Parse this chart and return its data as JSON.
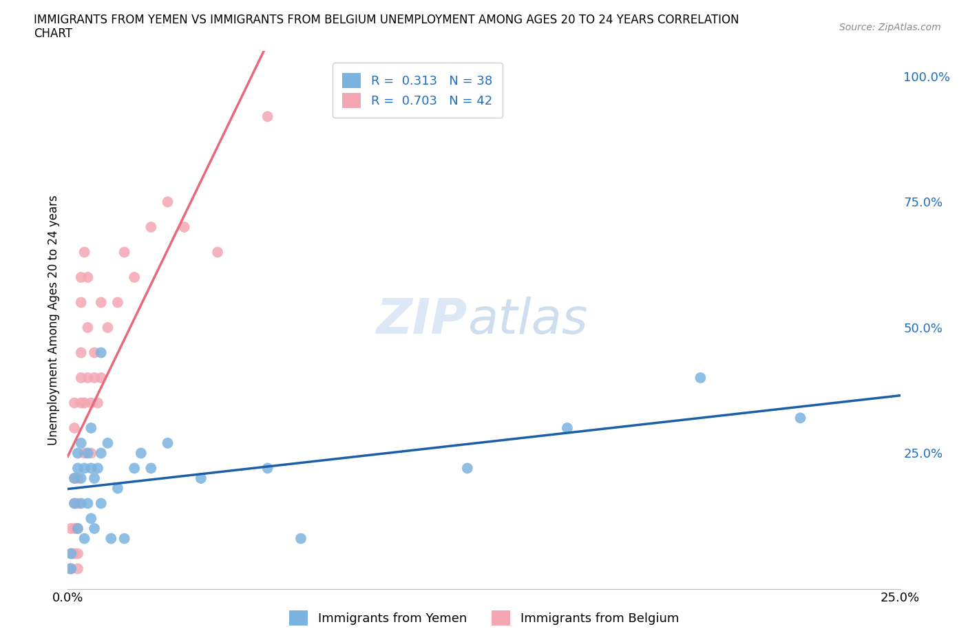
{
  "title_line1": "IMMIGRANTS FROM YEMEN VS IMMIGRANTS FROM BELGIUM UNEMPLOYMENT AMONG AGES 20 TO 24 YEARS CORRELATION",
  "title_line2": "CHART",
  "source_text": "Source: ZipAtlas.com",
  "ylabel": "Unemployment Among Ages 20 to 24 years",
  "xlim": [
    0.0,
    0.25
  ],
  "ylim": [
    -0.02,
    1.05
  ],
  "xtick_labels": [
    "0.0%",
    "25.0%"
  ],
  "ytick_labels": [
    "25.0%",
    "50.0%",
    "75.0%",
    "100.0%"
  ],
  "ytick_vals": [
    0.25,
    0.5,
    0.75,
    1.0
  ],
  "xtick_vals": [
    0.0,
    0.25
  ],
  "legend_r_color": "#1f6dbf",
  "watermark_zip": "ZIP",
  "watermark_atlas": "atlas",
  "yemen_color": "#7ab3e0",
  "belgium_color": "#f4a7b2",
  "legend_label_yemen": "Immigrants from Yemen",
  "legend_label_belgium": "Immigrants from Belgium",
  "yemen_line_color": "#1a5fa8",
  "belgium_line_color": "#e8697a",
  "background_color": "#ffffff",
  "grid_color": "#cccccc",
  "legend_entry_yemen": "R =  0.313   N = 38",
  "legend_entry_belgium": "R =  0.703   N = 42",
  "yemen_x": [
    0.001,
    0.001,
    0.002,
    0.002,
    0.003,
    0.003,
    0.003,
    0.004,
    0.004,
    0.004,
    0.005,
    0.005,
    0.006,
    0.006,
    0.007,
    0.007,
    0.007,
    0.008,
    0.008,
    0.009,
    0.01,
    0.01,
    0.01,
    0.012,
    0.013,
    0.015,
    0.017,
    0.02,
    0.022,
    0.025,
    0.03,
    0.04,
    0.06,
    0.07,
    0.12,
    0.15,
    0.19,
    0.22
  ],
  "yemen_y": [
    0.05,
    0.02,
    0.2,
    0.15,
    0.25,
    0.22,
    0.1,
    0.27,
    0.2,
    0.15,
    0.22,
    0.08,
    0.25,
    0.15,
    0.3,
    0.22,
    0.12,
    0.2,
    0.1,
    0.22,
    0.45,
    0.25,
    0.15,
    0.27,
    0.08,
    0.18,
    0.08,
    0.22,
    0.25,
    0.22,
    0.27,
    0.2,
    0.22,
    0.08,
    0.22,
    0.3,
    0.4,
    0.32
  ],
  "belgium_x": [
    0.0005,
    0.001,
    0.001,
    0.001,
    0.002,
    0.002,
    0.002,
    0.002,
    0.002,
    0.002,
    0.003,
    0.003,
    0.003,
    0.003,
    0.003,
    0.004,
    0.004,
    0.004,
    0.004,
    0.004,
    0.005,
    0.005,
    0.005,
    0.006,
    0.006,
    0.006,
    0.007,
    0.007,
    0.008,
    0.008,
    0.009,
    0.01,
    0.01,
    0.012,
    0.015,
    0.017,
    0.02,
    0.025,
    0.03,
    0.035,
    0.045,
    0.06
  ],
  "belgium_y": [
    0.02,
    0.05,
    0.1,
    0.02,
    0.05,
    0.1,
    0.15,
    0.2,
    0.3,
    0.35,
    0.02,
    0.05,
    0.1,
    0.15,
    0.2,
    0.35,
    0.4,
    0.45,
    0.55,
    0.6,
    0.25,
    0.35,
    0.65,
    0.4,
    0.5,
    0.6,
    0.25,
    0.35,
    0.45,
    0.4,
    0.35,
    0.55,
    0.4,
    0.5,
    0.55,
    0.65,
    0.6,
    0.7,
    0.75,
    0.7,
    0.65,
    0.92
  ]
}
